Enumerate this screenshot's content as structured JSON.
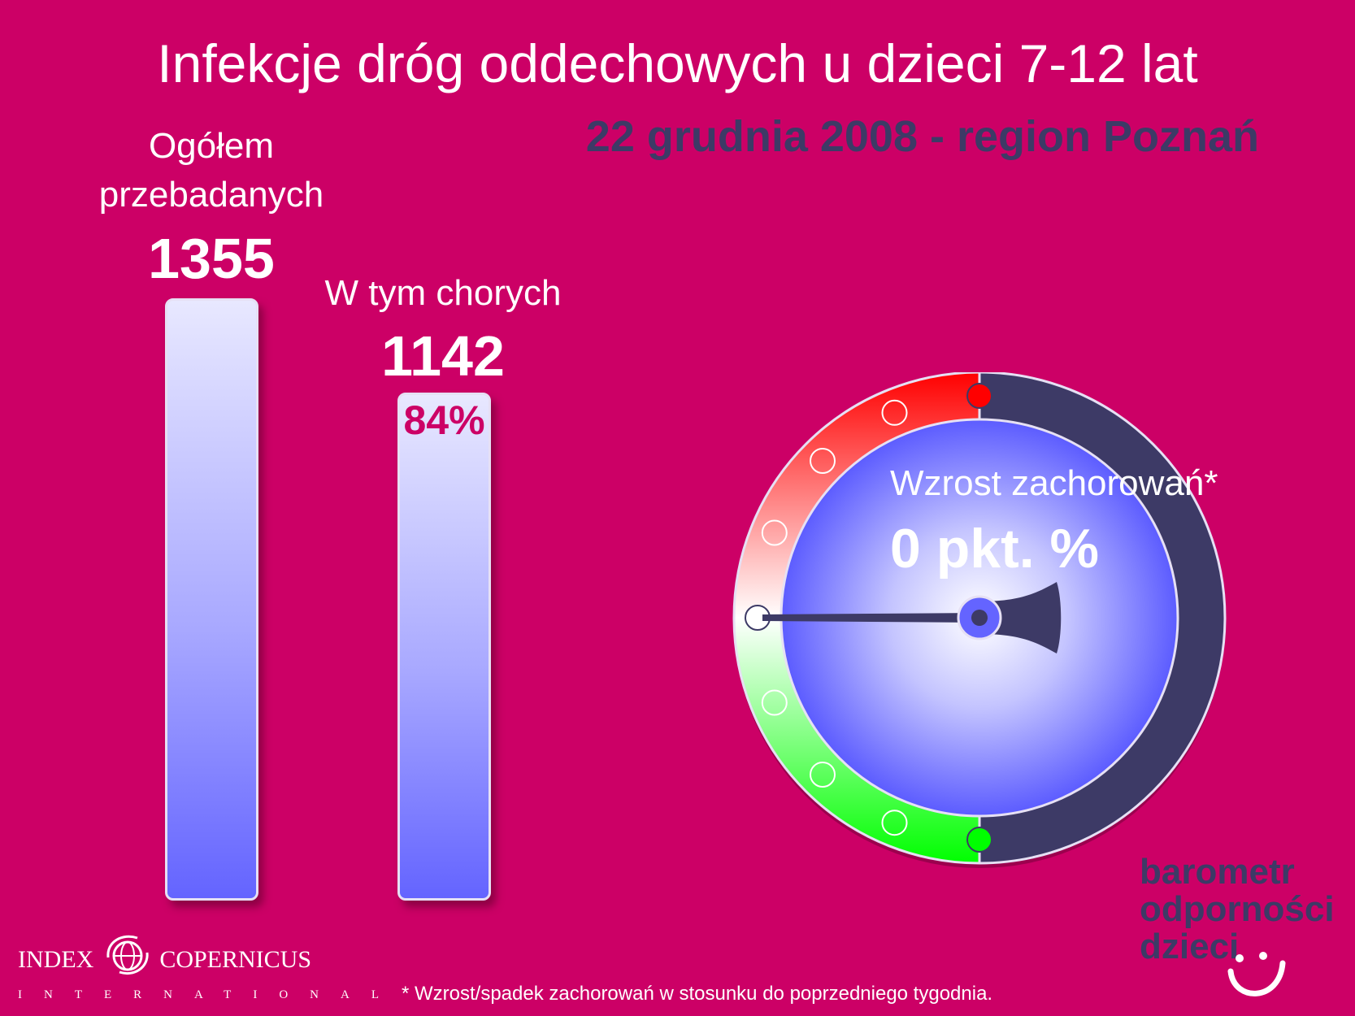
{
  "title": "Infekcje dróg oddechowych u dzieci 7-12 lat",
  "subtitle": "22 grudnia 2008 - region Poznań",
  "chart_data": {
    "type": "bar",
    "categories": [
      "Ogółem przebadanych",
      "W tym chorych"
    ],
    "values": [
      1355,
      1142
    ],
    "series": [
      {
        "values": [
          1355,
          1142
        ]
      }
    ],
    "category_labels": {
      "total_line1": "Ogółem",
      "total_line2": "przebadanych",
      "sick": "W tym chorych"
    },
    "value_labels": [
      "1355",
      "1142"
    ],
    "percent_label": "84%",
    "percent_value": 84,
    "ylim": [
      0,
      1355
    ]
  },
  "gauge": {
    "label": "Wzrost zachorowań*",
    "value_text": "0 pkt. %",
    "value": 0,
    "colors": {
      "increase": "#ff0000",
      "decrease": "#00ff00",
      "dial_center": "#ffffff",
      "dial_edge": "#5c5cff",
      "rim_dark": "#3d3a66",
      "needle": "#3d3a66"
    }
  },
  "footnote": "* Wzrost/spadek zachorowań w stosunku do poprzedniego tygodnia.",
  "logo_left": {
    "line1_left": "INDEX",
    "line1_right": "COPERNICUS",
    "line2": "INTERNATIONAL",
    "icon": "globe-swirl-icon"
  },
  "brand": {
    "line1": "barometr",
    "line2": "odporności",
    "line3": "dzieci",
    "icon": "smiley-icon"
  }
}
